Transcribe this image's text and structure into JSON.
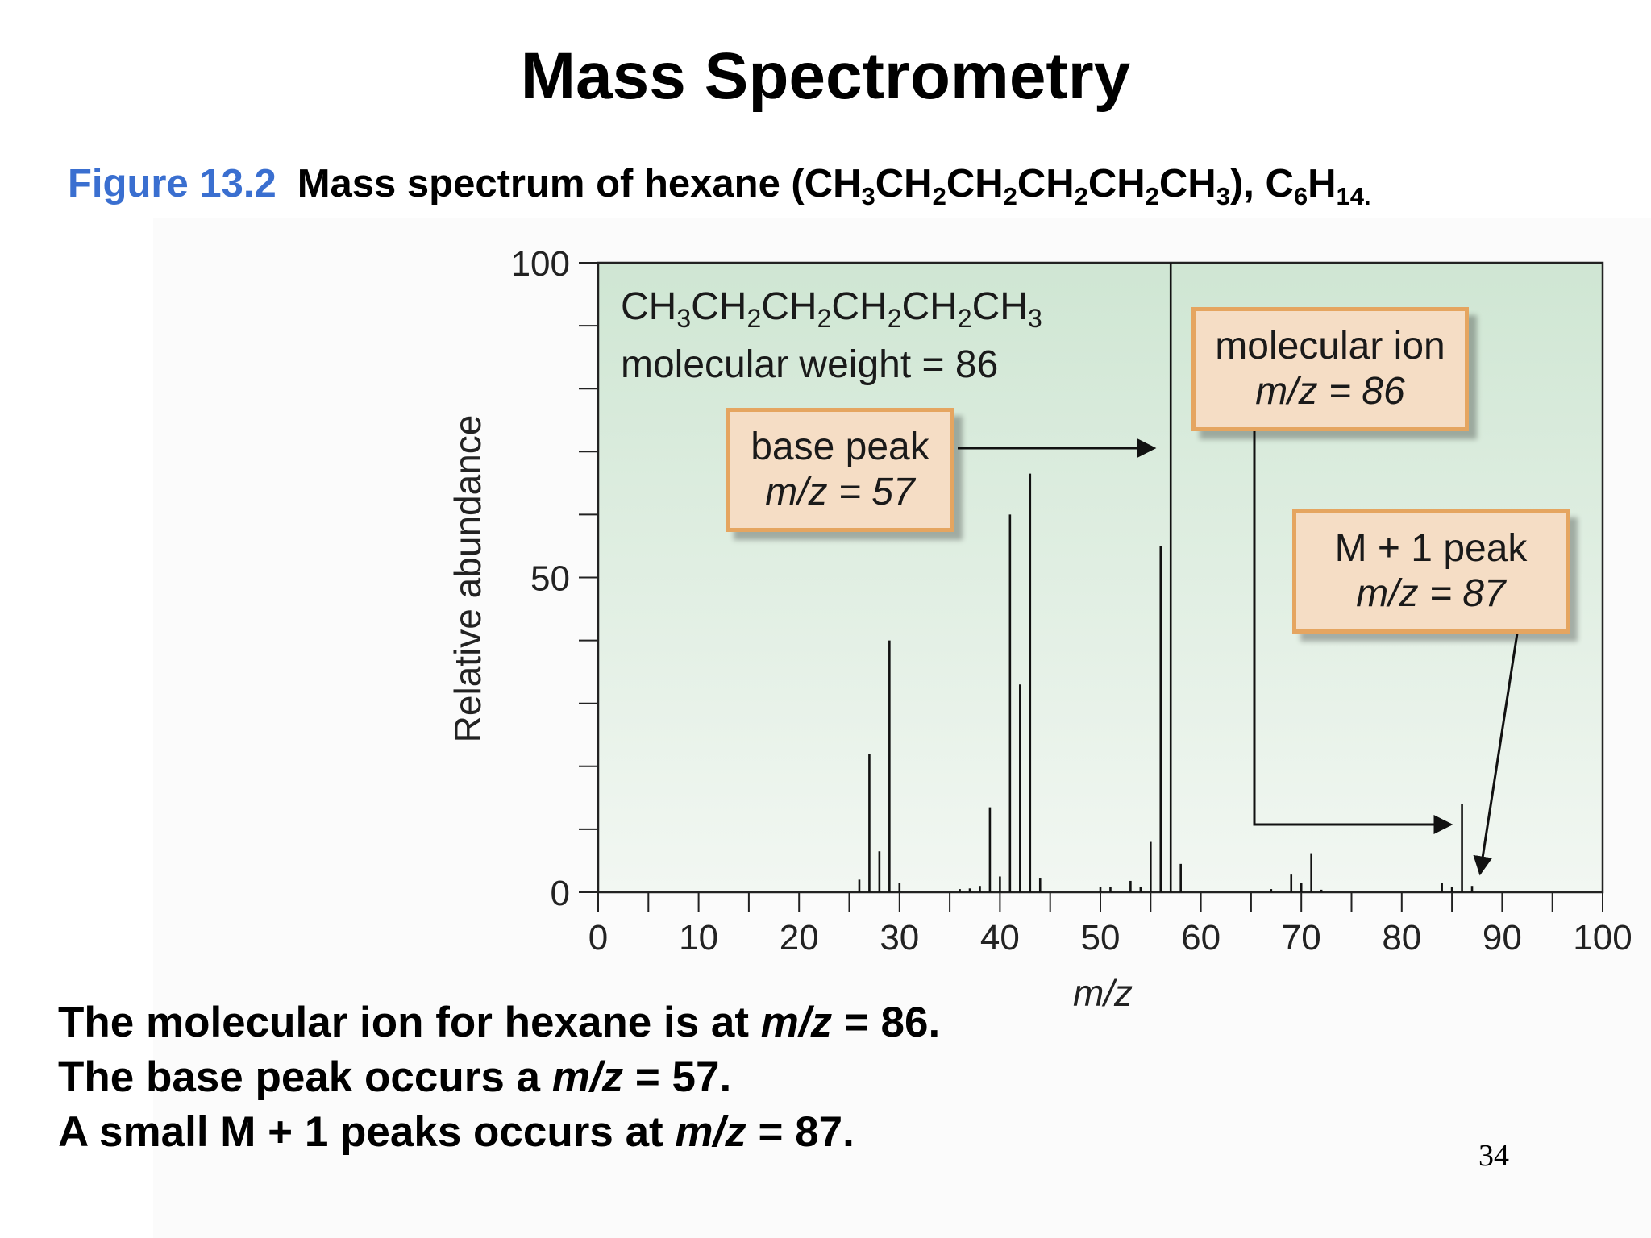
{
  "slide": {
    "title": "Mass Spectrometry",
    "figure_number": "Figure 13.2",
    "caption_text": "Mass spectrum of hexane (CH3CH2CH2CH2CH2CH3), C6H14.",
    "page_number": "34"
  },
  "summary": {
    "line1_pre": "The molecular ion for hexane is at ",
    "line1_mz": "m/z",
    "line1_post": " = 86.",
    "line2_pre": "The base peak occurs a ",
    "line2_mz": "m/z",
    "line2_post": " = 57.",
    "line3_pre": "A small M + 1 peaks occurs at ",
    "line3_mz": "m/z",
    "line3_post": " = 87."
  },
  "chart_data": {
    "type": "bar",
    "title": "",
    "xlabel": "m/z",
    "ylabel": "Relative abundance",
    "xlim": [
      0,
      100
    ],
    "ylim": [
      0,
      100
    ],
    "x_ticks": [
      0,
      10,
      20,
      30,
      40,
      50,
      60,
      70,
      80,
      90,
      100
    ],
    "y_tick_labels": [
      0,
      50,
      100
    ],
    "formula_note": "CH3CH2CH2CH2CH2CH3",
    "molecular_weight_note": "molecular weight = 86",
    "annotations": [
      {
        "label": "base peak",
        "value": "m/z = 57",
        "x": 57
      },
      {
        "label": "molecular ion",
        "value": "m/z = 86",
        "x": 86
      },
      {
        "label": "M + 1 peak",
        "value": "m/z = 87",
        "x": 87
      }
    ],
    "peaks": [
      {
        "mz": 26,
        "abundance": 2
      },
      {
        "mz": 27,
        "abundance": 22
      },
      {
        "mz": 28,
        "abundance": 6.5
      },
      {
        "mz": 29,
        "abundance": 40
      },
      {
        "mz": 30,
        "abundance": 1.5
      },
      {
        "mz": 36,
        "abundance": 0.5
      },
      {
        "mz": 37,
        "abundance": 0.6
      },
      {
        "mz": 38,
        "abundance": 1
      },
      {
        "mz": 39,
        "abundance": 13.5
      },
      {
        "mz": 40,
        "abundance": 2.5
      },
      {
        "mz": 41,
        "abundance": 60
      },
      {
        "mz": 42,
        "abundance": 33
      },
      {
        "mz": 43,
        "abundance": 66.5
      },
      {
        "mz": 44,
        "abundance": 2.3
      },
      {
        "mz": 50,
        "abundance": 0.8
      },
      {
        "mz": 51,
        "abundance": 0.8
      },
      {
        "mz": 53,
        "abundance": 1.8
      },
      {
        "mz": 54,
        "abundance": 0.8
      },
      {
        "mz": 55,
        "abundance": 8
      },
      {
        "mz": 56,
        "abundance": 55
      },
      {
        "mz": 57,
        "abundance": 100
      },
      {
        "mz": 58,
        "abundance": 4.5
      },
      {
        "mz": 67,
        "abundance": 0.5
      },
      {
        "mz": 69,
        "abundance": 2.8
      },
      {
        "mz": 70,
        "abundance": 1.5
      },
      {
        "mz": 71,
        "abundance": 6.2
      },
      {
        "mz": 72,
        "abundance": 0.4
      },
      {
        "mz": 84,
        "abundance": 1.5
      },
      {
        "mz": 85,
        "abundance": 0.8
      },
      {
        "mz": 86,
        "abundance": 14
      },
      {
        "mz": 87,
        "abundance": 1
      }
    ]
  }
}
